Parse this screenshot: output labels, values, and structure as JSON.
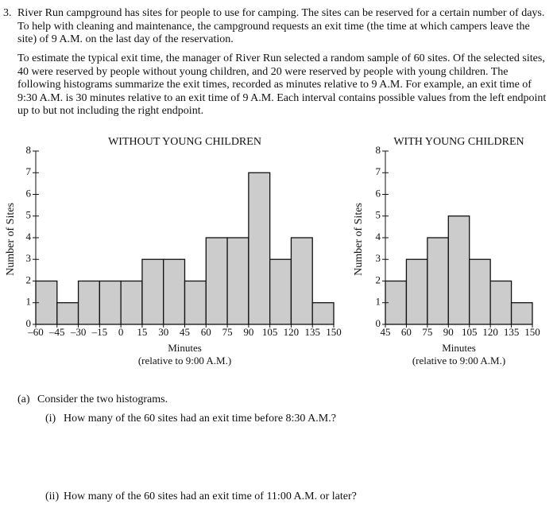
{
  "question_number": "3.",
  "paragraphs": [
    "River Run campground has sites for people to use for camping. The sites can be reserved for a certain number of days. To help with cleaning and maintenance, the campground requests an exit time (the time at which campers leave the site) of 9 A.M. on the last day of the reservation.",
    "To estimate the typical exit time, the manager of River Run selected a random sample of 60 sites. Of the selected sites, 40 were reserved by people without young children, and 20 were reserved by people with young children. The following histograms summarize the exit times, recorded as minutes relative to 9 A.M. For example, an exit time of 9:30 A.M. is 30 minutes relative to an exit time of 9 A.M. Each interval contains possible values from the left endpoint up to but not including the right endpoint."
  ],
  "chart_data": [
    {
      "type": "histogram",
      "title": "WITHOUT YOUNG CHILDREN",
      "xlabel": "Minutes",
      "xlabel_note": "(relative to 9:00 A.M.)",
      "ylabel": "Number of Sites",
      "bins": [
        -60,
        -45,
        -30,
        -15,
        0,
        15,
        30,
        45,
        60,
        75,
        90,
        105,
        120,
        135,
        150
      ],
      "values": [
        2,
        1,
        2,
        2,
        2,
        3,
        3,
        2,
        4,
        4,
        7,
        3,
        4,
        1
      ],
      "color": "#cccccc",
      "xlim": [
        -60,
        150
      ],
      "xticks": [
        {
          "value": -60,
          "label": "–60"
        },
        {
          "value": -45,
          "label": "–45"
        },
        {
          "value": -30,
          "label": "–30"
        },
        {
          "value": -15,
          "label": "–15"
        },
        0,
        15,
        30,
        45,
        60,
        75,
        90,
        105,
        120,
        135,
        150
      ],
      "ylim": [
        0,
        8
      ],
      "yticks": [
        0,
        1,
        2,
        3,
        4,
        5,
        6,
        7,
        8
      ]
    },
    {
      "type": "histogram",
      "title": "WITH YOUNG CHILDREN",
      "xlabel": "Minutes",
      "xlabel_note": "(relative to 9:00 A.M.)",
      "ylabel": "Number of Sites",
      "bins": [
        45,
        60,
        75,
        90,
        105,
        120,
        135,
        150
      ],
      "values": [
        2,
        3,
        4,
        5,
        3,
        2,
        1
      ],
      "color": "#cccccc",
      "xlim": [
        45,
        150
      ],
      "xticks": [
        45,
        60,
        75,
        90,
        105,
        120,
        135,
        150
      ],
      "ylim": [
        0,
        8
      ],
      "yticks": [
        0,
        1,
        2,
        3,
        4,
        5,
        6,
        7,
        8
      ]
    }
  ],
  "parts": {
    "label": "(a)",
    "text": "Consider the two histograms.",
    "items": [
      {
        "label": "(i)",
        "text": "How many of the 60 sites had an exit time before 8:30 A.M.?"
      },
      {
        "label": "(ii)",
        "text": "How many of the 60 sites had an exit time of 11:00 A.M. or later?"
      }
    ]
  }
}
